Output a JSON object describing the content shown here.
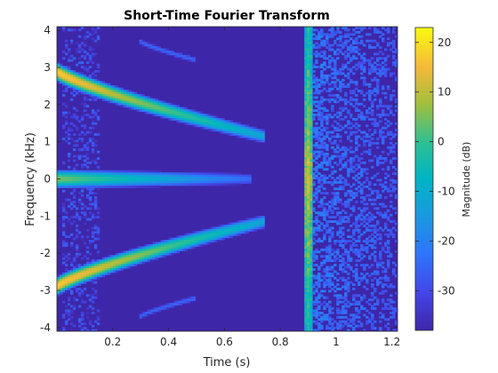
{
  "chart_data": {
    "type": "heatmap",
    "title": "Short-Time Fourier Transform",
    "xlabel": "Time (s)",
    "ylabel": "Frequency (kHz)",
    "xlim": [
      0,
      1.22
    ],
    "ylim": [
      -4.1,
      4.1
    ],
    "xticks": [
      0.2,
      0.4,
      0.6,
      0.8,
      1,
      1.2
    ],
    "xtick_labels": [
      "0.2",
      "0.4",
      "0.6",
      "0.8",
      "1",
      "1.2"
    ],
    "yticks": [
      4,
      3,
      2,
      1,
      0,
      -1,
      -2,
      -3,
      -4
    ],
    "ytick_labels": [
      "4",
      "3",
      "2",
      "1",
      "0",
      "-1",
      "-2",
      "-3",
      "-4"
    ],
    "colorbar": {
      "label": "Magnitude (dB)",
      "range": [
        -38,
        23
      ],
      "ticks": [
        20,
        10,
        0,
        -10,
        -20,
        -30
      ],
      "tick_labels": [
        "20",
        "10",
        "0",
        "-10",
        "-20",
        "-30"
      ],
      "colormap": "parula"
    },
    "features": [
      {
        "kind": "chirp",
        "t": [
          0,
          0.74
        ],
        "f": [
          2.9,
          1.15
        ],
        "level_db": [
          18,
          -12
        ]
      },
      {
        "kind": "chirp",
        "t": [
          0,
          0.74
        ],
        "f": [
          -2.9,
          -1.15
        ],
        "level_db": [
          18,
          -12
        ]
      },
      {
        "kind": "tone",
        "t": [
          0,
          0.7
        ],
        "f": 0,
        "level_db": [
          5,
          -25
        ]
      },
      {
        "kind": "faint-chirp",
        "t": [
          0.3,
          0.5
        ],
        "f": [
          3.7,
          3.2
        ],
        "level_db": -25
      },
      {
        "kind": "faint-chirp",
        "t": [
          0.3,
          0.5
        ],
        "f": [
          -3.7,
          -3.2
        ],
        "level_db": -25
      },
      {
        "kind": "impulse",
        "t": 0.9,
        "f": [
          -4,
          4
        ],
        "level_db": [
          -8,
          12
        ]
      },
      {
        "kind": "noise-burst",
        "t": [
          0.9,
          1.22
        ],
        "f": [
          -4,
          4
        ],
        "level_db": [
          -30,
          -18
        ]
      },
      {
        "kind": "noise-band",
        "t": [
          0.02,
          0.15
        ],
        "f": [
          -4,
          4
        ],
        "level_db": [
          -35,
          -25
        ]
      }
    ]
  }
}
